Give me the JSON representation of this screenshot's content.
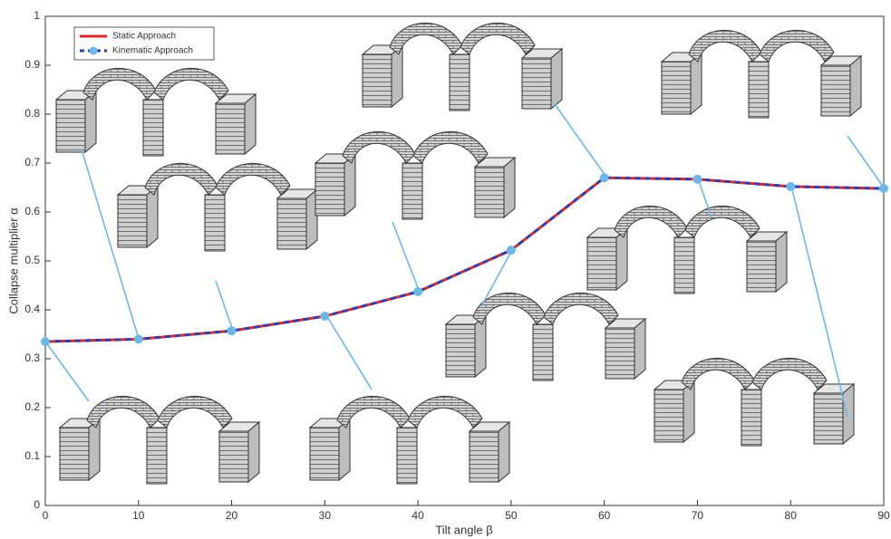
{
  "chart_data": {
    "type": "line",
    "x": [
      0,
      10,
      20,
      30,
      40,
      50,
      60,
      70,
      80,
      90
    ],
    "series": [
      {
        "name": "Static Approach",
        "color": "#d62b2b",
        "values": [
          0.335,
          0.34,
          0.357,
          0.387,
          0.437,
          0.522,
          0.67,
          0.667,
          0.652,
          0.648
        ]
      },
      {
        "name": "Kinematic Approach",
        "color": "#2b3fb8",
        "marker_color": "#6cb8e6",
        "values": [
          0.335,
          0.34,
          0.357,
          0.387,
          0.437,
          0.522,
          0.67,
          0.667,
          0.652,
          0.648
        ]
      }
    ],
    "xlabel": "Tilt angle β",
    "ylabel": "Collapse multiplier α",
    "xlim": [
      0,
      90
    ],
    "xticks": [
      0,
      10,
      20,
      30,
      40,
      50,
      60,
      70,
      80,
      90
    ],
    "ylim": [
      0,
      1
    ],
    "yticks": [
      0,
      0.1,
      0.2,
      0.3,
      0.4,
      0.5,
      0.6,
      0.7,
      0.8,
      0.9,
      1
    ],
    "legend": "upper left"
  }
}
